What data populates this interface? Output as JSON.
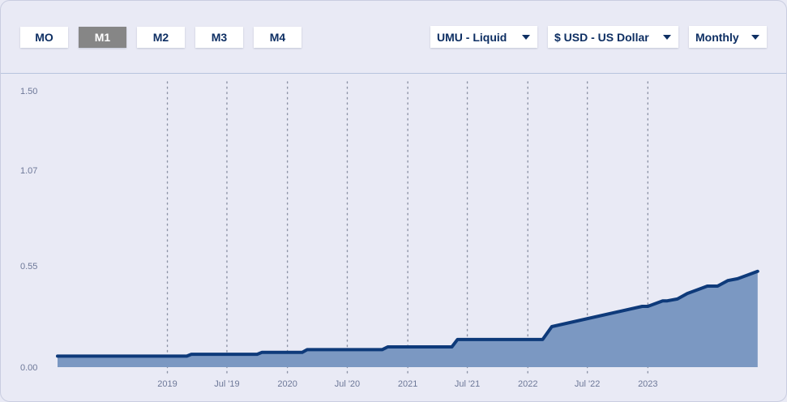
{
  "toolbar": {
    "model_buttons": [
      {
        "label": "MO",
        "active": false
      },
      {
        "label": "M1",
        "active": true
      },
      {
        "label": "M2",
        "active": false
      },
      {
        "label": "M3",
        "active": false
      },
      {
        "label": "M4",
        "active": false
      }
    ],
    "dropdowns": {
      "asset": "UMU - Liquid",
      "currency": "$ USD - US Dollar",
      "frequency": "Monthly"
    }
  },
  "colors": {
    "line": "#0e3a7a",
    "area": "#7b98c2",
    "grid": "#8d93a6",
    "active_button": "#868686"
  },
  "chart_data": {
    "type": "area",
    "title": "",
    "xlabel": "",
    "ylabel": "",
    "ylim": [
      0,
      1.5
    ],
    "xlim": [
      "2018-02-01",
      "2023-12-31"
    ],
    "y_ticks": [
      {
        "value": 0,
        "label": "0.00"
      },
      {
        "value": 0.55,
        "label": "0.55"
      },
      {
        "value": 1.07,
        "label": "1.07"
      },
      {
        "value": 1.5,
        "label": "1.50"
      }
    ],
    "x_ticks": [
      {
        "date": "2019-01-01",
        "label": "2019"
      },
      {
        "date": "2019-07-01",
        "label": "Jul '19"
      },
      {
        "date": "2020-01-01",
        "label": "2020"
      },
      {
        "date": "2020-07-01",
        "label": "Jul '20"
      },
      {
        "date": "2021-01-01",
        "label": "2021"
      },
      {
        "date": "2021-07-01",
        "label": "Jul '21"
      },
      {
        "date": "2022-01-01",
        "label": "2022"
      },
      {
        "date": "2022-07-01",
        "label": "Jul '22"
      },
      {
        "date": "2023-01-01",
        "label": "2023"
      }
    ],
    "grid": "vertical dotted",
    "series": [
      {
        "points": [
          {
            "x": "2018-02-01",
            "y": 0.06
          },
          {
            "x": "2019-03-01",
            "y": 0.06
          },
          {
            "x": "2019-03-15",
            "y": 0.07
          },
          {
            "x": "2019-10-01",
            "y": 0.07
          },
          {
            "x": "2019-10-15",
            "y": 0.08
          },
          {
            "x": "2020-02-15",
            "y": 0.08
          },
          {
            "x": "2020-03-01",
            "y": 0.095
          },
          {
            "x": "2020-10-15",
            "y": 0.095
          },
          {
            "x": "2020-11-01",
            "y": 0.11
          },
          {
            "x": "2021-05-15",
            "y": 0.11
          },
          {
            "x": "2021-06-01",
            "y": 0.15
          },
          {
            "x": "2022-02-15",
            "y": 0.15
          },
          {
            "x": "2022-03-15",
            "y": 0.22
          },
          {
            "x": "2022-12-15",
            "y": 0.33
          },
          {
            "x": "2023-01-01",
            "y": 0.33
          },
          {
            "x": "2023-02-15",
            "y": 0.36
          },
          {
            "x": "2023-03-01",
            "y": 0.36
          },
          {
            "x": "2023-04-01",
            "y": 0.37
          },
          {
            "x": "2023-05-01",
            "y": 0.4
          },
          {
            "x": "2023-06-01",
            "y": 0.42
          },
          {
            "x": "2023-07-01",
            "y": 0.44
          },
          {
            "x": "2023-08-01",
            "y": 0.44
          },
          {
            "x": "2023-09-01",
            "y": 0.47
          },
          {
            "x": "2023-10-01",
            "y": 0.48
          },
          {
            "x": "2023-11-01",
            "y": 0.5
          },
          {
            "x": "2023-12-01",
            "y": 0.52
          }
        ]
      }
    ]
  }
}
